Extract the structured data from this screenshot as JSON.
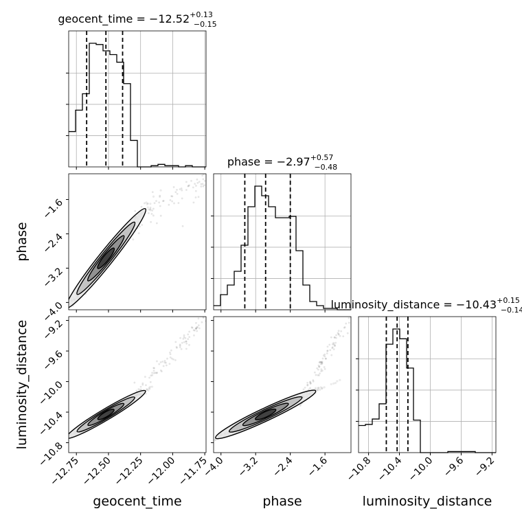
{
  "chart_data": {
    "type": "corner",
    "parameters": [
      "geocent_time",
      "phase",
      "luminosity_distance"
    ],
    "titles": {
      "geocent_time": {
        "prefix": "geocent_time = ",
        "median": "−12.52",
        "plus": "+0.13",
        "minus": "−0.15"
      },
      "phase": {
        "prefix": "phase = ",
        "median": "−2.97",
        "plus": "+0.57",
        "minus": "−0.48"
      },
      "luminosity_distance": {
        "prefix": "luminosity_distance = ",
        "median": "−10.43",
        "plus": "+0.15",
        "minus": "−0.14"
      }
    },
    "axis_labels": {
      "geocent_time": "geocent_time",
      "phase": "phase",
      "luminosity_distance": "luminosity_distance"
    },
    "ranges": {
      "geocent_time": [
        -12.81,
        -11.74
      ],
      "phase": [
        -4.17,
        -1.0
      ],
      "luminosity_distance": [
        -10.93,
        -9.15
      ]
    },
    "ticks": {
      "geocent_time": {
        "values": [
          -12.75,
          -12.5,
          -12.25,
          -12.0,
          -11.75
        ],
        "labels": [
          "−12.75",
          "−12.50",
          "−12.25",
          "−12.00",
          "−11.75"
        ]
      },
      "phase": {
        "values": [
          -4.0,
          -3.2,
          -2.4,
          -1.6
        ],
        "labels": [
          "−4.0",
          "−3.2",
          "−2.4",
          "−1.6"
        ]
      },
      "luminosity_distance": {
        "values": [
          -10.8,
          -10.4,
          -10.0,
          -9.6,
          -9.2
        ],
        "labels": [
          "−10.8",
          "−10.4",
          "−10.0",
          "−9.6",
          "−9.2"
        ]
      }
    },
    "quantiles": {
      "geocent_time": [
        -12.67,
        -12.52,
        -12.39
      ],
      "phase": [
        -3.45,
        -2.97,
        -2.4
      ],
      "luminosity_distance": [
        -10.57,
        -10.43,
        -10.29
      ]
    },
    "histograms": {
      "geocent_time": {
        "x0": -12.81,
        "x1": -11.74,
        "counts": [
          28,
          45,
          58,
          98,
          97,
          92,
          89,
          83,
          66,
          21,
          0,
          0,
          1,
          2,
          1,
          1,
          0,
          1,
          0,
          0
        ]
      },
      "phase": {
        "x0": -4.17,
        "x1": -1.0,
        "counts": [
          3,
          11,
          18,
          28,
          47,
          75,
          90,
          83,
          75,
          67,
          67,
          68,
          43,
          18,
          6,
          3,
          1,
          1,
          0,
          0
        ]
      },
      "luminosity_distance": {
        "x0": -10.93,
        "x1": -9.15,
        "counts": [
          25,
          26,
          31,
          45,
          100,
          114,
          105,
          78,
          30,
          0,
          0,
          0,
          0,
          1,
          1,
          1,
          1,
          0,
          0,
          0
        ]
      }
    },
    "grid": true
  }
}
